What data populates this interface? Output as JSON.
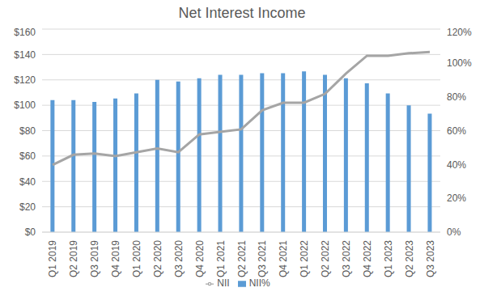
{
  "chart_data": {
    "type": "bar",
    "title": "Net Interest Income",
    "categories": [
      "Q1 2019",
      "Q2 2019",
      "Q3 2019",
      "Q4 2019",
      "Q1 2020",
      "Q2 2020",
      "Q3 2020",
      "Q4 2020",
      "Q1 2021",
      "Q2 2021",
      "Q3 2021",
      "Q4 2021",
      "Q1 2022",
      "Q2 2022",
      "Q3 2022",
      "Q4 2022",
      "Q1 2023",
      "Q2 2023",
      "Q3 2023"
    ],
    "series": [
      {
        "name": "NII%",
        "type": "bar",
        "axis": "y2",
        "color": "#5B9BD5",
        "values": [
          78,
          78,
          77,
          79,
          82,
          90,
          89,
          91,
          93,
          93,
          94,
          94,
          95,
          93,
          91,
          88,
          82,
          75,
          70
        ]
      },
      {
        "name": "NII",
        "type": "line",
        "color": "#A5A5A5",
        "values": [
          53,
          61,
          62,
          60,
          63,
          66,
          63,
          77,
          79,
          81,
          96,
          102,
          102,
          109,
          125,
          139,
          139,
          141,
          142
        ]
      }
    ],
    "ylim": [
      0,
      160
    ],
    "yticks": [
      {
        "value": 0,
        "label": "$0"
      },
      {
        "value": 20,
        "label": "$20"
      },
      {
        "value": 40,
        "label": "$40"
      },
      {
        "value": 60,
        "label": "$60"
      },
      {
        "value": 80,
        "label": "$80"
      },
      {
        "value": 100,
        "label": "$100"
      },
      {
        "value": 120,
        "label": "$120"
      },
      {
        "value": 140,
        "label": "$140"
      },
      {
        "value": 160,
        "label": "$160"
      }
    ],
    "y2lim": [
      0,
      120
    ],
    "y2ticks": [
      {
        "value": 0,
        "label": "0%"
      },
      {
        "value": 20,
        "label": "20%"
      },
      {
        "value": 40,
        "label": "40%"
      },
      {
        "value": 60,
        "label": "60%"
      },
      {
        "value": 80,
        "label": "80%"
      },
      {
        "value": 100,
        "label": "100%"
      },
      {
        "value": 120,
        "label": "120%"
      }
    ],
    "grid": true,
    "legend": "bottom"
  }
}
